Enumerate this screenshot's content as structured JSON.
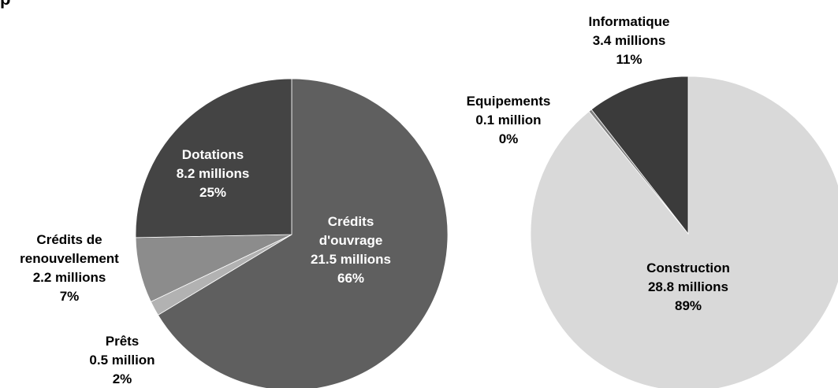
{
  "corner_title": "p",
  "chart_data": [
    {
      "type": "pie",
      "title": "",
      "slices": [
        {
          "label": "Crédits\nd'ouvrage",
          "amount": "21.5 millions",
          "percent": "66%",
          "value": 21.5,
          "color": "#5f5f5f",
          "text_color": "#ffffff"
        },
        {
          "label": "Prêts",
          "amount": "0.5 million",
          "percent": "2%",
          "value": 0.5,
          "color": "#b2b2b2",
          "text_color": "#000000"
        },
        {
          "label": "Crédits de\nrenouvellement",
          "amount": "2.2 millions",
          "percent": "7%",
          "value": 2.2,
          "color": "#8c8c8c",
          "text_color": "#000000"
        },
        {
          "label": "Dotations",
          "amount": "8.2 millions",
          "percent": "25%",
          "value": 8.2,
          "color": "#444444",
          "text_color": "#ffffff"
        }
      ]
    },
    {
      "type": "pie",
      "title": "",
      "slices": [
        {
          "label": "Construction",
          "amount": "28.8 millions",
          "percent": "89%",
          "value": 28.8,
          "color": "#d9d9d9",
          "text_color": "#000000"
        },
        {
          "label": "Equipements",
          "amount": "0.1 million",
          "percent": "0%",
          "value": 0.1,
          "color": "#7f7f7f",
          "text_color": "#000000"
        },
        {
          "label": "Informatique",
          "amount": "3.4 millions",
          "percent": "11%",
          "value": 3.4,
          "color": "#3b3b3b",
          "text_color": "#000000"
        }
      ]
    }
  ]
}
